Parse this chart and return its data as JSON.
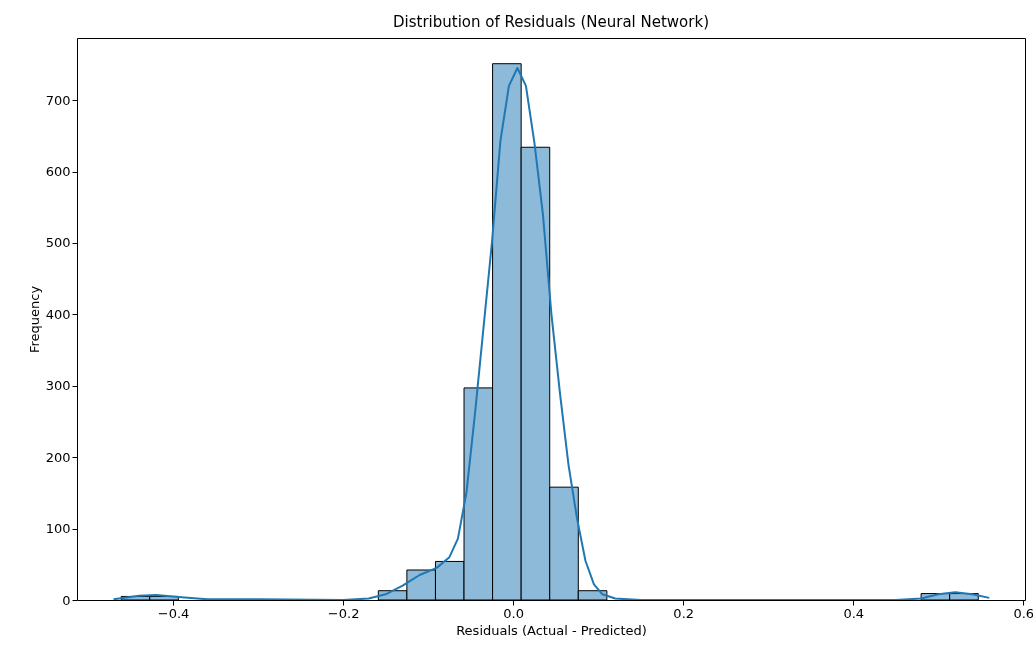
{
  "chart_data": {
    "type": "histogram",
    "title": "Distribution of Residuals (Neural Network)",
    "xlabel": "Residuals (Actual - Predicted)",
    "ylabel": "Frequency",
    "bins": [
      -0.461,
      -0.4274,
      -0.3938,
      -0.3602,
      -0.3266,
      -0.293,
      -0.2594,
      -0.2258,
      -0.1922,
      -0.1586,
      -0.125,
      -0.0914,
      -0.0578,
      -0.0242,
      0.0094,
      0.043,
      0.0766,
      0.1102,
      0.1438,
      0.1774,
      0.211,
      0.2446,
      0.2782,
      0.3118,
      0.3454,
      0.379,
      0.4126,
      0.4462,
      0.4798,
      0.5134,
      0.547
    ],
    "series": [
      {
        "type": "histogram",
        "color": "#8ebad9",
        "values": [
          5,
          5,
          0,
          0,
          0,
          0,
          0,
          0,
          0,
          13,
          42,
          54,
          297,
          751,
          634,
          158,
          13,
          0,
          0,
          0,
          0,
          0,
          0,
          0,
          0,
          0,
          0,
          0,
          9,
          9
        ]
      },
      {
        "type": "line",
        "color": "#1f77b4",
        "x": [
          -0.47,
          -0.44,
          -0.42,
          -0.39,
          -0.36,
          -0.3,
          -0.2,
          -0.17,
          -0.15,
          -0.13,
          -0.11,
          -0.09,
          -0.075,
          -0.065,
          -0.055,
          -0.045,
          -0.035,
          -0.025,
          -0.015,
          -0.005,
          0.005,
          0.015,
          0.025,
          0.035,
          0.045,
          0.055,
          0.065,
          0.075,
          0.085,
          0.095,
          0.105,
          0.12,
          0.15,
          0.3,
          0.45,
          0.48,
          0.5,
          0.52,
          0.54,
          0.56
        ],
        "values": [
          1,
          6,
          7,
          4,
          1,
          1,
          0,
          2,
          8,
          20,
          35,
          45,
          60,
          86,
          150,
          260,
          380,
          500,
          643,
          720,
          745,
          720,
          640,
          540,
          400,
          290,
          190,
          115,
          55,
          22,
          8,
          2,
          0,
          0,
          0,
          2,
          8,
          11,
          8,
          3
        ]
      }
    ],
    "xlim": [
      -0.513,
      0.602
    ],
    "ylim": [
      0,
      787
    ],
    "xticks": [
      {
        "value": -0.4,
        "label": "−0.4"
      },
      {
        "value": -0.2,
        "label": "−0.2"
      },
      {
        "value": 0,
        "label": "0.0"
      },
      {
        "value": 0.2,
        "label": "0.2"
      },
      {
        "value": 0.4,
        "label": "0.4"
      },
      {
        "value": 0.6,
        "label": "0.6"
      }
    ],
    "yticks": [
      0,
      100,
      200,
      300,
      400,
      500,
      600,
      700
    ]
  }
}
